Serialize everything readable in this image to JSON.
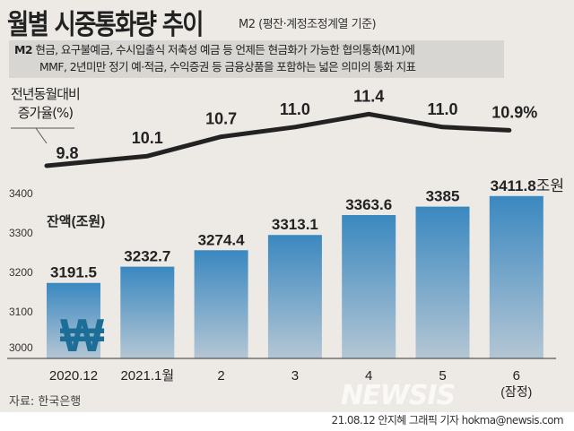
{
  "header": {
    "title": "월별 시중통화량 추이",
    "subtitle": "M2 (평잔·계정조정계열 기준)"
  },
  "note": {
    "term": "M2",
    "line1": "현금, 요구불예금, 수시입출식 저축성 예금 등 언제든 현금화가 가능한 협의통화(M1)에",
    "line2": "MMF, 2년미만 정기 예·적금, 수익증권 등 금융상품을 포함하는 넓은 의미의 통화 지표"
  },
  "source": "자료: 한국은행",
  "credit": "21.08.12 안지혜 그래픽 기자 hokma@newsis.com",
  "watermark": "NEWSIS",
  "colors": {
    "bar_top": "#3a88c0",
    "bar_bottom": "#b4c6d4",
    "line": "#222222",
    "background": "#edeae5"
  },
  "icon": "won-sign-icon",
  "chart_data": [
    {
      "type": "line",
      "ylabel_line1": "전년동월대비",
      "ylabel_line2": "증가율(%)",
      "categories": [
        "2020.12",
        "2021.1월",
        "2",
        "3",
        "4",
        "5",
        "6"
      ],
      "values": [
        9.8,
        10.1,
        10.7,
        11.0,
        11.4,
        11.0,
        10.9
      ],
      "value_labels": [
        "9.8",
        "10.1",
        "10.7",
        "11.0",
        "11.4",
        "11.0",
        "10.9%"
      ]
    },
    {
      "type": "bar",
      "ylabel": "잔액(조원)",
      "unit": "조원",
      "categories": [
        "2020.12",
        "2021.1월",
        "2",
        "3",
        "4",
        "5",
        "6"
      ],
      "category_note": "(잠정)",
      "values": [
        3191.5,
        3232.7,
        3274.4,
        3313.1,
        3363.6,
        3385,
        3411.8
      ],
      "value_labels": [
        "3191.5",
        "3232.7",
        "3274.4",
        "3313.1",
        "3363.6",
        "3385",
        "3411.8"
      ],
      "yticks": [
        "3000",
        "3100",
        "3200",
        "3300",
        "3400"
      ],
      "ylim": [
        3000,
        3400
      ]
    }
  ]
}
